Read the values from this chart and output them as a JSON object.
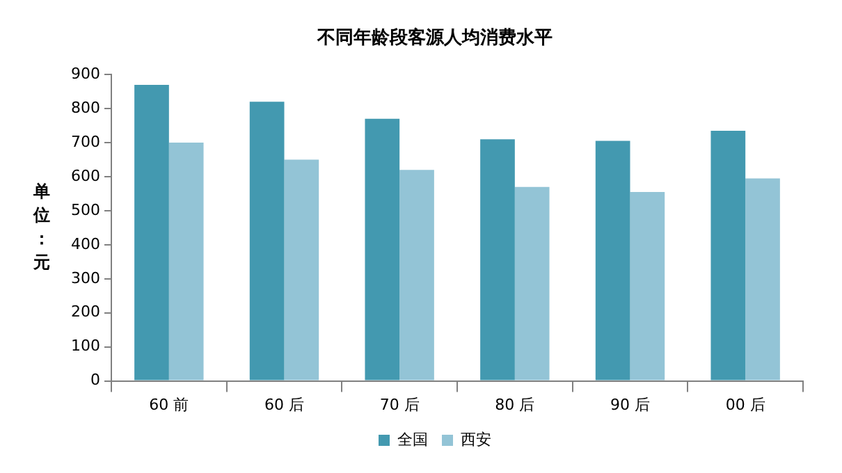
{
  "chart_data": {
    "type": "bar",
    "title": "不同年龄段客源人均消费水平",
    "ylabel": "单位：元",
    "categories": [
      "60 前",
      "60 后",
      "70 后",
      "80 后",
      "90 后",
      "00 后"
    ],
    "series": [
      {
        "name": "全国",
        "color": "#4399b0",
        "values": [
          870,
          820,
          770,
          710,
          705,
          735
        ]
      },
      {
        "name": "西安",
        "color": "#93c4d6",
        "values": [
          700,
          650,
          620,
          570,
          555,
          595
        ]
      }
    ],
    "ylim": [
      0,
      900
    ],
    "yticks": [
      0,
      100,
      200,
      300,
      400,
      500,
      600,
      700,
      800,
      900
    ],
    "grid": false,
    "legend": "bottom"
  }
}
